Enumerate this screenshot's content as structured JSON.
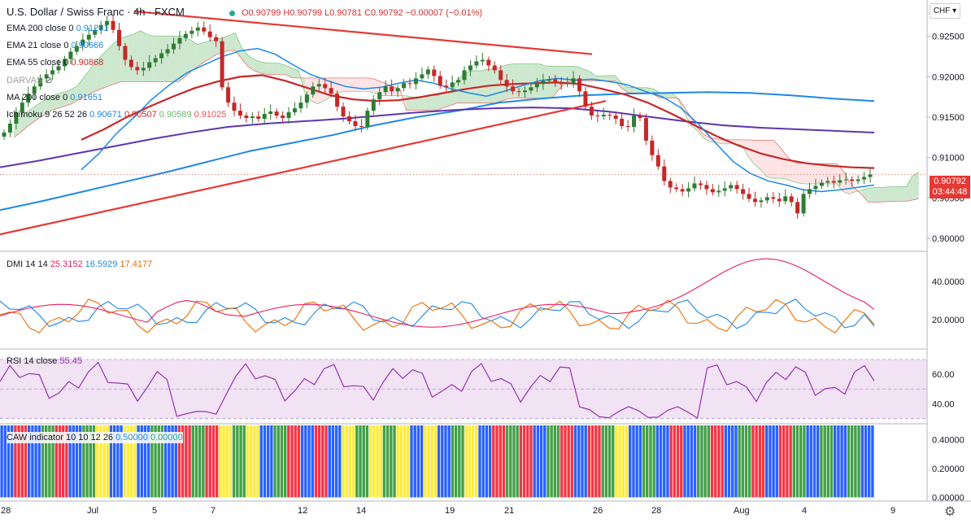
{
  "header": {
    "title": "U.S. Dollar / Swiss Franc · 4h · FXCM",
    "ohlc": "O0.90799 H0.90799 L0.90781 C0.90792 −0.00007 (−0.01%)"
  },
  "currency_button": "CHF",
  "last_price": {
    "value": "0.90792",
    "countdown": "03:44:48"
  },
  "legends": {
    "ema200": {
      "label": "EMA 200 close 0",
      "value": "0.91261"
    },
    "ema21": {
      "label": "EMA 21 close 0",
      "value": "0.90666"
    },
    "ema55": {
      "label": "EMA 55 close 0",
      "value": "0.90868"
    },
    "darvas": {
      "label": "DARVAS"
    },
    "ma200": {
      "label": "MA 200 close 0",
      "value": "0.91651"
    },
    "ichimoku": {
      "label": "Ichimoku 9 26 52 26",
      "v1": "0.90671",
      "v2": "0.90507",
      "v3": "0.90589",
      "v4": "0.91025"
    },
    "dmi": {
      "label": "DMI 14 14",
      "v1": "25.3152",
      "v2": "16.5929",
      "v3": "17.4177"
    },
    "rsi": {
      "label": "RSI 14 close",
      "value": "55.45"
    },
    "caw": {
      "label": "CAW indicator 10 10 12 26",
      "v1": "0.50000",
      "v2": "0.00000"
    }
  },
  "colors": {
    "bull": "#2e7d32",
    "bear": "#c62828",
    "trend": "#e53935",
    "ema21": "#1e88e5",
    "ema55": "#c62828",
    "ema200": "#5e35b1",
    "ma200": "#1e88e5",
    "cloud_green": "#a5d6a7",
    "cloud_red": "#ffcdd2",
    "rsi_band": "#e1bee7",
    "rsi_line": "#8e24aa",
    "dmi_plus": "#1e88e5",
    "dmi_minus": "#ef6c00",
    "adx": "#e91e63"
  },
  "chart_data": [
    {
      "type": "candlestick",
      "title": "U.S. Dollar / Swiss Franc · 4h · FXCM",
      "x_ticks": [
        "28",
        "Jul",
        "5",
        "7",
        "12",
        "14",
        "19",
        "21",
        "26",
        "28",
        "Aug",
        "4",
        "9"
      ],
      "y_ticks": [
        0.9,
        0.905,
        0.91,
        0.915,
        0.92,
        0.925
      ],
      "ylim": [
        0.8985,
        0.9295
      ],
      "last_close": 0.90792,
      "series_approx": [
        {
          "name": "close (approx., 6 pts/day)",
          "values": [
            0.9131,
            0.9142,
            0.9156,
            0.9168,
            0.9179,
            0.9188,
            0.9198,
            0.9203,
            0.9208,
            0.9213,
            0.9222,
            0.9231,
            0.9238,
            0.9246,
            0.9252,
            0.9258,
            0.9264,
            0.9269,
            0.9258,
            0.9238,
            0.9221,
            0.9212,
            0.9208,
            0.9211,
            0.9218,
            0.9223,
            0.9229,
            0.9234,
            0.9241,
            0.9248,
            0.9253,
            0.9257,
            0.9261,
            0.9256,
            0.9249,
            0.9244,
            0.9187,
            0.9168,
            0.9158,
            0.9152,
            0.9149,
            0.9151,
            0.9148,
            0.9154,
            0.9157,
            0.9152,
            0.9149,
            0.9156,
            0.9161,
            0.9168,
            0.9178,
            0.9188,
            0.9191,
            0.9186,
            0.9179,
            0.9163,
            0.9151,
            0.9145,
            0.9139,
            0.9138,
            0.9158,
            0.9172,
            0.9181,
            0.9188,
            0.9182,
            0.9186,
            0.9192,
            0.9191,
            0.9198,
            0.9203,
            0.9209,
            0.9201,
            0.9189,
            0.9187,
            0.9193,
            0.9196,
            0.9208,
            0.9214,
            0.9219,
            0.9221,
            0.9214,
            0.9208,
            0.9196,
            0.9188,
            0.9182,
            0.9181,
            0.9183,
            0.9187,
            0.9191,
            0.9195,
            0.9197,
            0.9193,
            0.9191,
            0.9192,
            0.9198,
            0.9182,
            0.9163,
            0.9152,
            0.9151,
            0.9153,
            0.9152,
            0.9148,
            0.9139,
            0.9138,
            0.9152,
            0.9149,
            0.9121,
            0.9103,
            0.9089,
            0.9071,
            0.9063,
            0.9061,
            0.9058,
            0.9062,
            0.9068,
            0.9066,
            0.9061,
            0.9057,
            0.9059,
            0.9062,
            0.9066,
            0.9061,
            0.9055,
            0.9049,
            0.9045,
            0.9047,
            0.9051,
            0.9049,
            0.9046,
            0.9052,
            0.9045,
            0.9031,
            0.9055,
            0.9061,
            0.9065,
            0.9069,
            0.9071,
            0.9069,
            0.9072,
            0.9073,
            0.9071,
            0.9073,
            0.9076,
            0.9079
          ]
        },
        {
          "name": "EMA 21 (approx.)",
          "values": [
            0.9085,
            0.9105,
            0.913,
            0.915,
            0.9172,
            0.919,
            0.9205,
            0.9215,
            0.9225,
            0.9232,
            0.9235,
            0.9228,
            0.9215,
            0.9203,
            0.9195,
            0.9188,
            0.9185,
            0.9187,
            0.9192,
            0.9196,
            0.9192,
            0.9185,
            0.918,
            0.9176,
            0.9182,
            0.9189,
            0.9195,
            0.9198,
            0.9196,
            0.9197,
            0.9194,
            0.919,
            0.9182,
            0.9175,
            0.9162,
            0.9142,
            0.9118,
            0.9095,
            0.908,
            0.9071,
            0.9066,
            0.906,
            0.9058,
            0.906,
            0.9063,
            0.9066
          ]
        },
        {
          "name": "EMA 55 (approx.)",
          "values": [
            0.9122,
            0.9135,
            0.915,
            0.9163,
            0.9175,
            0.9186,
            0.9194,
            0.92,
            0.9202,
            0.9195,
            0.9186,
            0.9177,
            0.9172,
            0.917,
            0.9171,
            0.9175,
            0.918,
            0.9185,
            0.9189,
            0.9191,
            0.9192,
            0.9193,
            0.9191,
            0.9185,
            0.9178,
            0.9168,
            0.9155,
            0.9141,
            0.9127,
            0.9115,
            0.9105,
            0.9098,
            0.9093,
            0.909,
            0.9088,
            0.9087
          ]
        },
        {
          "name": "EMA 200 (approx.)",
          "values": [
            0.9088,
            0.9096,
            0.9105,
            0.9114,
            0.9123,
            0.9131,
            0.9138,
            0.9142,
            0.9145,
            0.9148,
            0.9152,
            0.9156,
            0.9159,
            0.9161,
            0.9162,
            0.9161,
            0.9157,
            0.9151,
            0.9145,
            0.914,
            0.9137,
            0.9135,
            0.9133,
            0.9131
          ]
        },
        {
          "name": "MA 200 (approx.)",
          "values": [
            0.9035,
            0.9046,
            0.9058,
            0.907,
            0.9082,
            0.9095,
            0.9108,
            0.9118,
            0.9128,
            0.914,
            0.915,
            0.9158,
            0.9168,
            0.9173,
            0.9177,
            0.9179,
            0.918,
            0.9181,
            0.918,
            0.9177,
            0.9173,
            0.917
          ]
        }
      ]
    },
    {
      "type": "line",
      "title": "DMI 14 14",
      "y_ticks": [
        20,
        40
      ],
      "ylim": [
        5,
        55
      ],
      "series": [
        {
          "name": "+DI",
          "last": 16.5929
        },
        {
          "name": "-DI",
          "last": 17.4177
        },
        {
          "name": "ADX",
          "last": 25.3152
        }
      ]
    },
    {
      "type": "line",
      "title": "RSI 14 close",
      "y_ticks": [
        40,
        60
      ],
      "ylim": [
        27,
        76
      ],
      "band": [
        30,
        70
      ],
      "mid": 50,
      "last": 55.45
    },
    {
      "type": "bar",
      "title": "CAW indicator 10 10 12 26",
      "y_ticks": [
        0.0,
        0.2,
        0.4
      ],
      "ylim": [
        -0.02,
        0.5
      ],
      "bar_value": 0.5,
      "color_sequence_blocks": [
        "blue",
        "red",
        "blue",
        "green",
        "red",
        "blue",
        "green",
        "yellow",
        "blue",
        "yellow",
        "blue",
        "green",
        "blue",
        "red",
        "green",
        "red",
        "yellow",
        "green",
        "yellow",
        "blue",
        "green",
        "red",
        "blue",
        "red",
        "blue",
        "yellow",
        "green",
        "yellow",
        "green",
        "yellow",
        "blue",
        "yellow",
        "blue",
        "green",
        "yellow",
        "blue",
        "red",
        "green",
        "red",
        "blue",
        "green",
        "red",
        "blue",
        "red",
        "green",
        "yellow",
        "blue",
        "green",
        "blue",
        "red",
        "blue",
        "green",
        "red",
        "blue",
        "green",
        "red",
        "blue",
        "red",
        "green",
        "blue",
        "green",
        "blue",
        "green",
        "blue"
      ]
    }
  ]
}
